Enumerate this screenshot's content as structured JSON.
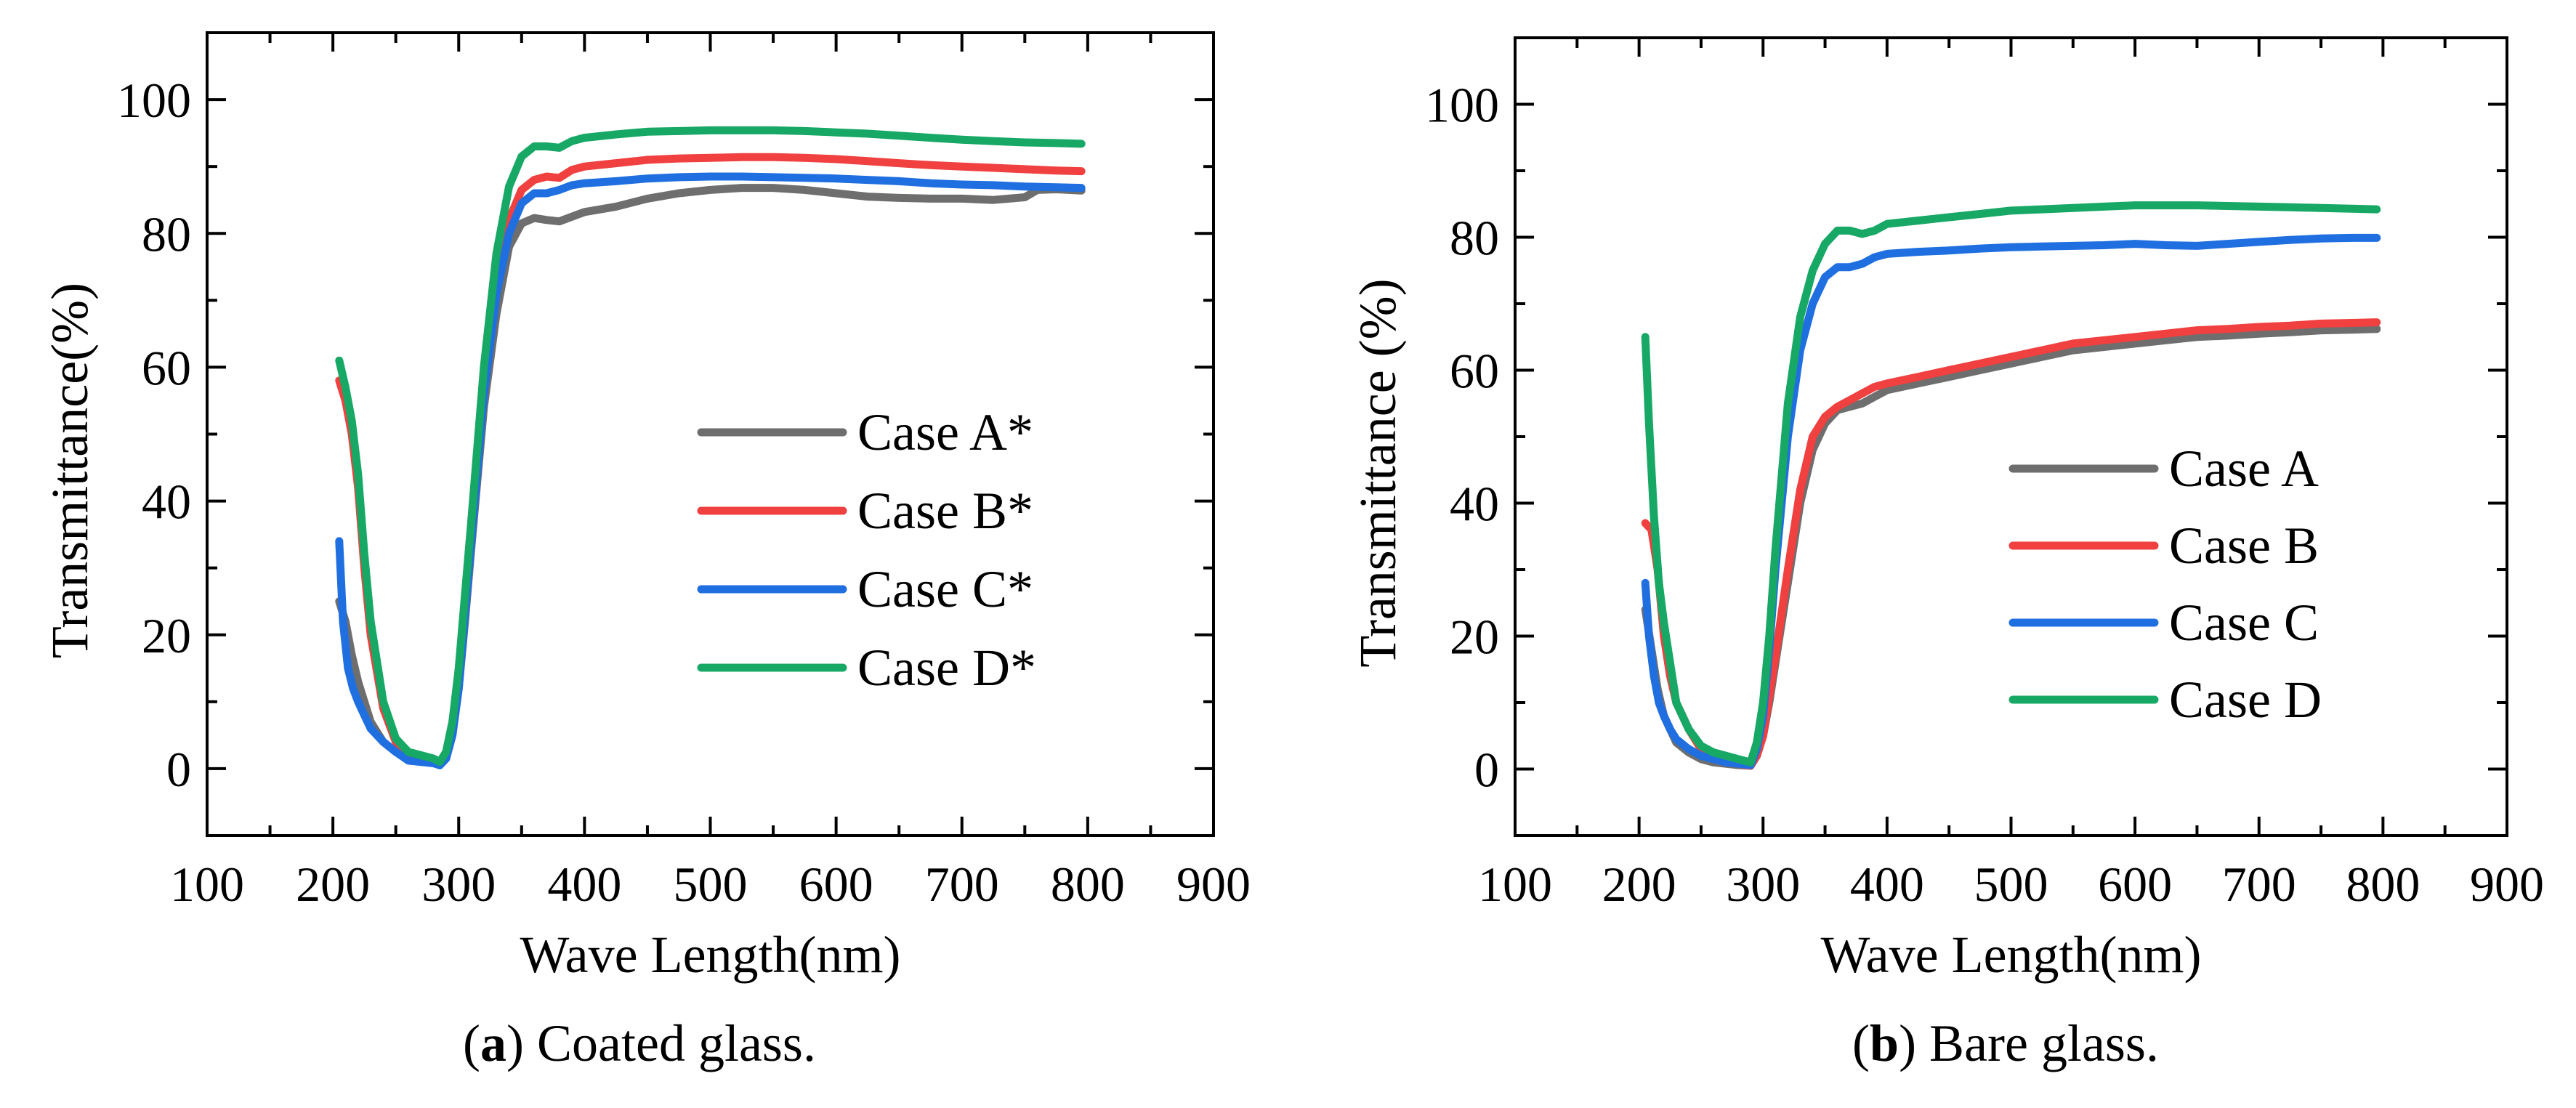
{
  "chart_data": [
    {
      "type": "line",
      "panel_letter": "a",
      "caption": ") Coated glass.",
      "xlabel": "Wave Length(nm)",
      "ylabel": "Transmittance(%)",
      "xlim": [
        100,
        900
      ],
      "ylim": [
        -10,
        110
      ],
      "x_ticks": [
        100,
        200,
        300,
        400,
        500,
        600,
        700,
        800,
        900
      ],
      "y_ticks": [
        0,
        20,
        40,
        60,
        80,
        100
      ],
      "legend_position": "center-right",
      "series": [
        {
          "name": "Case A*",
          "color": "#6e6e6e",
          "x": [
            205,
            210,
            215,
            220,
            225,
            230,
            240,
            250,
            260,
            270,
            280,
            285,
            290,
            295,
            300,
            305,
            310,
            320,
            330,
            340,
            350,
            360,
            370,
            380,
            390,
            400,
            425,
            450,
            475,
            500,
            525,
            550,
            575,
            600,
            625,
            650,
            675,
            700,
            725,
            750,
            760,
            775,
            795
          ],
          "y": [
            25,
            22,
            17,
            13,
            10,
            7,
            4,
            2.5,
            1.5,
            1,
            1,
            0.8,
            1.5,
            5,
            12,
            22,
            33,
            54,
            68,
            78,
            81.5,
            82.3,
            82,
            81.8,
            82.5,
            83.2,
            84,
            85.2,
            86,
            86.5,
            86.8,
            86.8,
            86.5,
            86,
            85.5,
            85.3,
            85.2,
            85.2,
            85,
            85.4,
            86.5,
            86.6,
            86.4
          ]
        },
        {
          "name": "Case B*",
          "color": "#f04040",
          "x": [
            205,
            210,
            215,
            220,
            225,
            230,
            240,
            250,
            260,
            270,
            280,
            285,
            290,
            295,
            300,
            305,
            310,
            320,
            330,
            340,
            350,
            360,
            370,
            380,
            390,
            400,
            425,
            450,
            475,
            500,
            525,
            550,
            575,
            600,
            625,
            650,
            675,
            700,
            725,
            750,
            775,
            795
          ],
          "y": [
            58,
            55,
            50,
            42,
            30,
            20,
            9,
            4,
            2,
            1.5,
            1,
            0.8,
            2,
            6,
            14,
            25,
            36,
            58,
            73,
            82,
            86.5,
            88,
            88.5,
            88.3,
            89.5,
            90,
            90.5,
            91,
            91.2,
            91.3,
            91.4,
            91.4,
            91.3,
            91.1,
            90.8,
            90.5,
            90.2,
            90,
            89.8,
            89.6,
            89.4,
            89.3
          ]
        },
        {
          "name": "Case C*",
          "color": "#1f6fe0",
          "x": [
            205,
            208,
            212,
            216,
            220,
            225,
            230,
            240,
            250,
            260,
            270,
            280,
            285,
            290,
            295,
            300,
            305,
            310,
            320,
            330,
            340,
            350,
            360,
            370,
            380,
            390,
            400,
            425,
            450,
            475,
            500,
            525,
            550,
            575,
            600,
            625,
            650,
            675,
            700,
            725,
            750,
            775,
            795
          ],
          "y": [
            34,
            22,
            15,
            12,
            10,
            8,
            6,
            4,
            2.5,
            1.2,
            1,
            0.8,
            0.5,
            1.5,
            5,
            12,
            23,
            34,
            56,
            71,
            80,
            84.5,
            86,
            86,
            86.5,
            87.2,
            87.5,
            87.8,
            88.2,
            88.4,
            88.5,
            88.5,
            88.4,
            88.3,
            88.2,
            88,
            87.8,
            87.5,
            87.3,
            87.2,
            87,
            86.9,
            86.8
          ]
        },
        {
          "name": "Case D*",
          "color": "#17a865",
          "x": [
            205,
            210,
            215,
            220,
            225,
            230,
            240,
            250,
            260,
            270,
            280,
            285,
            290,
            295,
            300,
            305,
            310,
            320,
            330,
            340,
            350,
            360,
            370,
            380,
            390,
            400,
            425,
            450,
            475,
            500,
            525,
            550,
            575,
            600,
            625,
            650,
            675,
            700,
            725,
            750,
            775,
            795
          ],
          "y": [
            61,
            57,
            52,
            44,
            32,
            22,
            10,
            4.5,
            2.5,
            2,
            1.5,
            1,
            2.5,
            7,
            15,
            26,
            37,
            60,
            77,
            87,
            91.5,
            93,
            93,
            92.8,
            93.8,
            94.3,
            94.8,
            95.2,
            95.3,
            95.4,
            95.4,
            95.4,
            95.3,
            95.1,
            94.9,
            94.6,
            94.3,
            94,
            93.8,
            93.6,
            93.5,
            93.4
          ]
        }
      ]
    },
    {
      "type": "line",
      "panel_letter": "b",
      "caption": ") Bare glass.",
      "xlabel": "Wave Length(nm)",
      "ylabel": "Transmittance (%)",
      "xlim": [
        100,
        900
      ],
      "ylim": [
        -10,
        110
      ],
      "x_ticks": [
        100,
        200,
        300,
        400,
        500,
        600,
        700,
        800,
        900
      ],
      "y_ticks": [
        0,
        20,
        40,
        60,
        80,
        100
      ],
      "legend_position": "center-right",
      "series": [
        {
          "name": "Case A",
          "color": "#6e6e6e",
          "x": [
            205,
            210,
            215,
            220,
            225,
            230,
            240,
            250,
            260,
            270,
            280,
            290,
            295,
            300,
            305,
            310,
            320,
            330,
            340,
            350,
            360,
            370,
            380,
            390,
            400,
            425,
            450,
            475,
            500,
            525,
            550,
            575,
            600,
            625,
            650,
            675,
            700,
            725,
            750,
            775,
            795
          ],
          "y": [
            24,
            18,
            12,
            8,
            6,
            4,
            2.5,
            1.5,
            1,
            0.8,
            0.6,
            0.5,
            2,
            5,
            10,
            16,
            28,
            40,
            48,
            52,
            54,
            54.5,
            55,
            56,
            57,
            58,
            59,
            60,
            61,
            62,
            63,
            63.5,
            64,
            64.5,
            65,
            65.2,
            65.5,
            65.7,
            66,
            66.1,
            66.2
          ]
        },
        {
          "name": "Case B",
          "color": "#f04040",
          "x": [
            205,
            210,
            215,
            220,
            225,
            230,
            240,
            250,
            260,
            270,
            280,
            290,
            295,
            300,
            305,
            310,
            320,
            330,
            340,
            350,
            360,
            370,
            380,
            390,
            400,
            425,
            450,
            475,
            500,
            525,
            550,
            575,
            600,
            625,
            650,
            675,
            700,
            725,
            750,
            775,
            795
          ],
          "y": [
            37,
            36,
            30,
            20,
            14,
            10,
            6,
            3,
            1.5,
            1,
            0.8,
            0.5,
            2,
            5,
            11,
            17,
            30,
            42,
            50,
            53,
            54.5,
            55.5,
            56.5,
            57.5,
            58,
            59,
            60,
            61,
            62,
            63,
            64,
            64.5,
            65,
            65.5,
            66,
            66.2,
            66.5,
            66.7,
            67,
            67.1,
            67.2
          ]
        },
        {
          "name": "Case C",
          "color": "#1f6fe0",
          "x": [
            205,
            208,
            212,
            216,
            220,
            225,
            230,
            240,
            250,
            260,
            270,
            280,
            290,
            295,
            300,
            305,
            310,
            320,
            330,
            340,
            350,
            360,
            370,
            380,
            390,
            400,
            425,
            450,
            475,
            500,
            525,
            550,
            575,
            600,
            625,
            650,
            675,
            700,
            725,
            750,
            775,
            795
          ],
          "y": [
            28,
            20,
            14,
            10,
            8,
            6,
            4.5,
            3,
            2,
            1.5,
            1,
            0.8,
            0.6,
            3,
            8,
            18,
            30,
            50,
            63,
            70,
            74,
            75.5,
            75.5,
            76,
            77,
            77.5,
            77.8,
            78,
            78.3,
            78.5,
            78.6,
            78.7,
            78.8,
            79,
            78.8,
            78.7,
            79,
            79.3,
            79.6,
            79.8,
            79.9,
            79.9
          ]
        },
        {
          "name": "Case D",
          "color": "#17a865",
          "x": [
            205,
            208,
            212,
            216,
            220,
            225,
            230,
            240,
            250,
            260,
            270,
            280,
            290,
            295,
            300,
            305,
            310,
            320,
            330,
            340,
            350,
            360,
            370,
            380,
            390,
            400,
            425,
            450,
            475,
            500,
            525,
            550,
            575,
            600,
            625,
            650,
            675,
            700,
            725,
            750,
            775,
            795
          ],
          "y": [
            65,
            52,
            38,
            28,
            22,
            16,
            10,
            6,
            3.5,
            2.5,
            2,
            1.5,
            1,
            4,
            10,
            20,
            33,
            55,
            68,
            75,
            79,
            81,
            81,
            80.5,
            81,
            82,
            82.5,
            83,
            83.5,
            84,
            84.2,
            84.4,
            84.6,
            84.8,
            84.8,
            84.8,
            84.7,
            84.6,
            84.5,
            84.4,
            84.3,
            84.2
          ]
        }
      ]
    }
  ]
}
